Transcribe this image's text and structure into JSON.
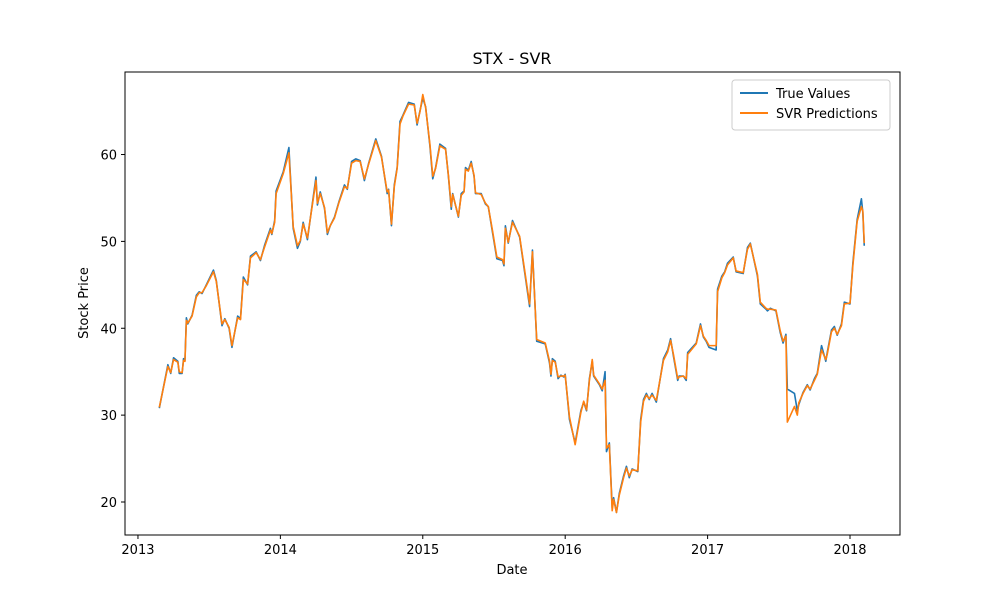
{
  "chart_data": {
    "type": "line",
    "title": "STX - SVR",
    "x_label": "Date",
    "y_label": "Stock Price",
    "x": [
      2013.15,
      2013.21,
      2013.23,
      2013.25,
      2013.28,
      2013.29,
      2013.31,
      2013.32,
      2013.33,
      2013.34,
      2013.35,
      2013.38,
      2013.41,
      2013.43,
      2013.45,
      2013.48,
      2013.53,
      2013.55,
      2013.59,
      2013.61,
      2013.64,
      2013.66,
      2013.7,
      2013.72,
      2013.74,
      2013.77,
      2013.79,
      2013.83,
      2013.86,
      2013.89,
      2013.93,
      2013.94,
      2013.96,
      2013.97,
      2014.02,
      2014.06,
      2014.09,
      2014.12,
      2014.14,
      2014.16,
      2014.19,
      2014.25,
      2014.26,
      2014.28,
      2014.31,
      2014.33,
      2014.35,
      2014.38,
      2014.41,
      2014.45,
      2014.47,
      2014.5,
      2014.53,
      2014.56,
      2014.59,
      2014.62,
      2014.67,
      2014.71,
      2014.75,
      2014.76,
      2014.78,
      2014.8,
      2014.82,
      2014.84,
      2014.86,
      2014.9,
      2014.94,
      2014.96,
      2014.98,
      2015.0,
      2015.02,
      2015.05,
      2015.07,
      2015.09,
      2015.12,
      2015.16,
      2015.18,
      2015.2,
      2015.21,
      2015.25,
      2015.27,
      2015.29,
      2015.3,
      2015.32,
      2015.34,
      2015.36,
      2015.37,
      2015.41,
      2015.44,
      2015.46,
      2015.49,
      2015.52,
      2015.56,
      2015.57,
      2015.58,
      2015.6,
      2015.63,
      2015.68,
      2015.75,
      2015.77,
      2015.8,
      2015.86,
      2015.89,
      2015.9,
      2015.91,
      2015.93,
      2015.95,
      2015.97,
      2015.99,
      2016.0,
      2016.03,
      2016.07,
      2016.11,
      2016.13,
      2016.15,
      2016.17,
      2016.19,
      2016.2,
      2016.24,
      2016.26,
      2016.28,
      2016.29,
      2016.31,
      2016.33,
      2016.34,
      2016.36,
      2016.38,
      2016.41,
      2016.43,
      2016.45,
      2016.47,
      2016.51,
      2016.53,
      2016.55,
      2016.57,
      2016.59,
      2016.61,
      2016.64,
      2016.69,
      2016.72,
      2016.74,
      2016.76,
      2016.79,
      2016.8,
      2016.83,
      2016.85,
      2016.86,
      2016.92,
      2016.95,
      2016.97,
      2016.99,
      2017.01,
      2017.06,
      2017.07,
      2017.1,
      2017.12,
      2017.14,
      2017.18,
      2017.2,
      2017.25,
      2017.28,
      2017.3,
      2017.35,
      2017.37,
      2017.41,
      2017.42,
      2017.44,
      2017.48,
      2017.51,
      2017.53,
      2017.55,
      2017.56,
      2017.61,
      2017.63,
      2017.64,
      2017.67,
      2017.7,
      2017.72,
      2017.75,
      2017.77,
      2017.8,
      2017.83,
      2017.84,
      2017.87,
      2017.89,
      2017.91,
      2017.94,
      2017.96,
      2018.0,
      2018.02,
      2018.05,
      2018.08,
      2018.09,
      2018.1
    ],
    "series": [
      {
        "name": "True Values",
        "color": "#1f77b4",
        "values": [
          30.8,
          35.8,
          34.8,
          36.6,
          36.2,
          34.8,
          34.8,
          36.5,
          36.3,
          41.2,
          40.5,
          41.5,
          43.8,
          44.2,
          44.0,
          45.0,
          46.7,
          45.5,
          40.3,
          41.1,
          40.0,
          37.8,
          41.4,
          41.1,
          45.9,
          45.0,
          48.3,
          48.8,
          47.8,
          49.6,
          51.5,
          50.8,
          52.4,
          55.8,
          58.0,
          60.8,
          51.5,
          49.2,
          50.0,
          52.2,
          50.2,
          57.4,
          54.2,
          55.7,
          53.8,
          50.8,
          51.8,
          52.8,
          54.5,
          56.5,
          56.0,
          59.2,
          59.5,
          59.3,
          57.0,
          59.0,
          61.8,
          59.8,
          55.5,
          56.0,
          51.8,
          56.5,
          58.5,
          63.8,
          64.5,
          66.0,
          65.8,
          63.4,
          65.0,
          66.5,
          65.5,
          61.0,
          57.2,
          58.5,
          61.2,
          60.7,
          57.5,
          53.7,
          55.5,
          52.8,
          55.5,
          55.8,
          58.5,
          58.2,
          59.2,
          57.5,
          55.5,
          55.5,
          54.3,
          54.0,
          51.0,
          48.0,
          47.8,
          47.2,
          51.8,
          49.8,
          52.4,
          50.5,
          42.5,
          49.0,
          38.5,
          38.2,
          36.0,
          34.5,
          36.5,
          36.2,
          34.2,
          34.6,
          34.4,
          34.7,
          29.5,
          26.8,
          30.5,
          31.5,
          30.5,
          34.2,
          36.2,
          34.5,
          33.5,
          32.8,
          35.0,
          25.8,
          26.8,
          19.3,
          20.5,
          18.8,
          21.0,
          23.0,
          24.1,
          22.8,
          23.8,
          23.5,
          29.5,
          31.8,
          32.5,
          31.8,
          32.5,
          31.5,
          36.5,
          37.5,
          38.8,
          36.8,
          34.0,
          34.5,
          34.5,
          34.0,
          37.2,
          38.3,
          40.5,
          39.0,
          38.5,
          37.8,
          37.5,
          44.5,
          46.0,
          46.5,
          47.5,
          48.2,
          46.5,
          46.3,
          49.3,
          49.8,
          46.0,
          42.8,
          42.2,
          42.0,
          42.3,
          42.0,
          39.5,
          38.3,
          39.3,
          33.0,
          32.5,
          30.5,
          31.2,
          32.6,
          33.5,
          32.9,
          34.2,
          34.8,
          38.0,
          36.2,
          37.2,
          39.8,
          40.2,
          39.2,
          40.5,
          43.0,
          42.8,
          47.5,
          52.5,
          54.9,
          53.3,
          49.5
        ]
      },
      {
        "name": "SVR Predictions",
        "color": "#ff7f0e",
        "values": [
          30.9,
          35.6,
          34.9,
          36.4,
          36.1,
          35.0,
          34.9,
          36.3,
          36.2,
          40.9,
          40.6,
          41.4,
          43.6,
          44.1,
          44.1,
          44.9,
          46.5,
          45.4,
          40.5,
          41.0,
          40.1,
          38.0,
          41.2,
          41.0,
          45.6,
          45.1,
          48.1,
          48.7,
          47.9,
          49.4,
          51.3,
          50.9,
          52.2,
          55.5,
          57.8,
          60.2,
          51.7,
          49.5,
          50.1,
          52.0,
          50.4,
          57.0,
          54.4,
          55.5,
          53.9,
          51.0,
          51.8,
          52.7,
          54.4,
          56.3,
          56.1,
          59.0,
          59.3,
          59.2,
          57.2,
          58.9,
          61.6,
          59.7,
          55.7,
          55.9,
          52.0,
          56.3,
          58.4,
          63.5,
          64.4,
          65.8,
          65.7,
          63.6,
          64.9,
          66.9,
          65.4,
          61.2,
          57.5,
          58.4,
          61.0,
          60.6,
          57.6,
          54.0,
          55.4,
          52.9,
          55.3,
          55.7,
          58.3,
          58.1,
          59.0,
          57.6,
          55.6,
          55.4,
          54.4,
          54.0,
          51.2,
          48.2,
          47.9,
          47.4,
          51.5,
          49.9,
          52.2,
          50.6,
          42.8,
          48.8,
          38.7,
          38.3,
          36.2,
          34.7,
          36.3,
          36.1,
          34.4,
          34.5,
          34.5,
          34.6,
          29.8,
          26.6,
          30.3,
          31.6,
          30.6,
          34.0,
          36.4,
          34.6,
          33.6,
          33.0,
          34.0,
          26.2,
          26.6,
          19.0,
          20.3,
          18.8,
          20.8,
          22.8,
          23.9,
          23.0,
          23.7,
          23.6,
          29.2,
          31.6,
          32.3,
          31.9,
          32.3,
          31.7,
          36.3,
          37.3,
          38.6,
          37.0,
          34.2,
          34.4,
          34.5,
          34.2,
          37.0,
          38.2,
          40.3,
          39.1,
          38.6,
          38.0,
          38.0,
          44.2,
          45.8,
          46.4,
          47.3,
          48.1,
          46.6,
          46.4,
          49.1,
          49.7,
          46.2,
          43.0,
          42.3,
          42.2,
          42.2,
          42.1,
          39.7,
          38.5,
          39.1,
          29.2,
          31.0,
          30.0,
          31.4,
          32.5,
          33.4,
          33.0,
          34.0,
          34.7,
          37.5,
          36.4,
          37.0,
          39.6,
          40.0,
          39.3,
          40.3,
          42.8,
          42.9,
          47.2,
          52.3,
          54.0,
          53.5,
          49.8
        ]
      }
    ],
    "xlim": [
      2012.909,
      2018.351
    ],
    "ylim": [
      16.2,
      69.5
    ],
    "xticks": [
      2013,
      2014,
      2015,
      2016,
      2017,
      2018
    ],
    "yticks": [
      20,
      30,
      40,
      50,
      60
    ],
    "legend": "upper right"
  }
}
